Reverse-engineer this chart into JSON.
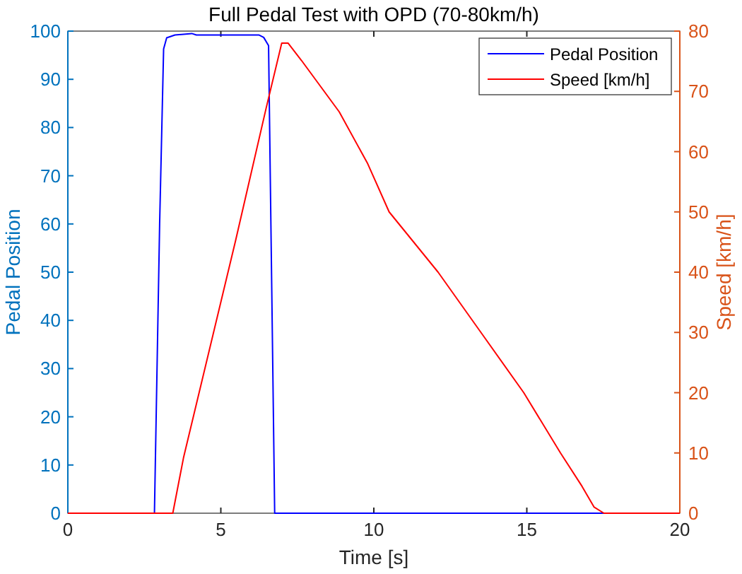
{
  "chart_data": {
    "type": "line",
    "title": "Full Pedal Test with OPD (70-80km/h)",
    "xlabel": "Time [s]",
    "ylabel": "Pedal Position",
    "y2label": "Speed [km/h]",
    "xlim": [
      0,
      20
    ],
    "xticks": [
      0,
      5,
      10,
      15,
      20
    ],
    "ylim": [
      0,
      100
    ],
    "yticks": [
      0,
      10,
      20,
      30,
      40,
      50,
      60,
      70,
      80,
      90,
      100
    ],
    "y2lim": [
      0,
      80
    ],
    "y2ticks": [
      0,
      10,
      20,
      30,
      40,
      50,
      60,
      70,
      80
    ],
    "legend": "top right",
    "grid": false,
    "line_style": "solid",
    "series": [
      {
        "name": "Pedal Position",
        "color": "#0000ff",
        "x": [
          0,
          2.83,
          3.0,
          3.13,
          3.23,
          3.5,
          4.05,
          4.2,
          6.24,
          6.4,
          6.56,
          6.76,
          20
        ],
        "values": [
          0,
          0,
          60,
          96.3,
          98.6,
          99.2,
          99.5,
          99.2,
          99.2,
          98.7,
          97,
          0,
          0
        ]
      },
      {
        "name": "Speed [km/h]",
        "color": "#ff0000",
        "axis": "y2",
        "x": [
          0,
          3.43,
          3.78,
          5.48,
          6.48,
          6.99,
          7.2,
          7.64,
          8.87,
          9.8,
          10.5,
          12.1,
          13.5,
          14.9,
          16.1,
          16.8,
          17.2,
          17.52,
          20
        ],
        "values": [
          0,
          0,
          9.2,
          45.2,
          67.2,
          78,
          78,
          75.1,
          66.6,
          58,
          50,
          40,
          30,
          20,
          10,
          4.5,
          1,
          0,
          0
        ]
      }
    ]
  }
}
